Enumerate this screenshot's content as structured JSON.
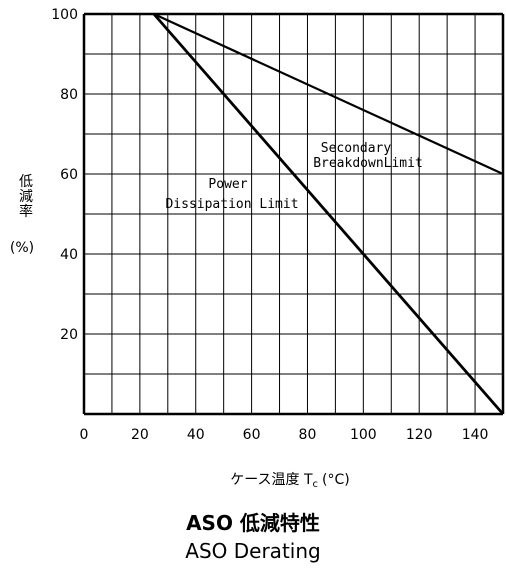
{
  "chart_data": {
    "type": "line",
    "xlabel_prefix": "ケース温度 T",
    "xlabel_sub": "c",
    "xlabel_suffix": "(°C)",
    "ylabel_lines": [
      "低",
      "減",
      "率"
    ],
    "ylabel_unit": "(%)",
    "xlim": [
      0,
      150
    ],
    "ylim": [
      0,
      100
    ],
    "x_ticks": [
      "0",
      "20",
      "40",
      "60",
      "80",
      "100",
      "120",
      "140"
    ],
    "y_ticks": [
      "20",
      "40",
      "60",
      "80",
      "100"
    ],
    "grid": true,
    "series": [
      {
        "label_lines": [
          "Secondary",
          "BreakdownLimit"
        ],
        "x": [
          25,
          150
        ],
        "y": [
          100,
          60
        ]
      },
      {
        "label_lines": [
          "Power",
          "Dissipation Limit"
        ],
        "x": [
          25,
          150
        ],
        "y": [
          100,
          0
        ]
      }
    ]
  },
  "caption_jp": "ASO 低減特性",
  "caption_en": "ASO Derating"
}
